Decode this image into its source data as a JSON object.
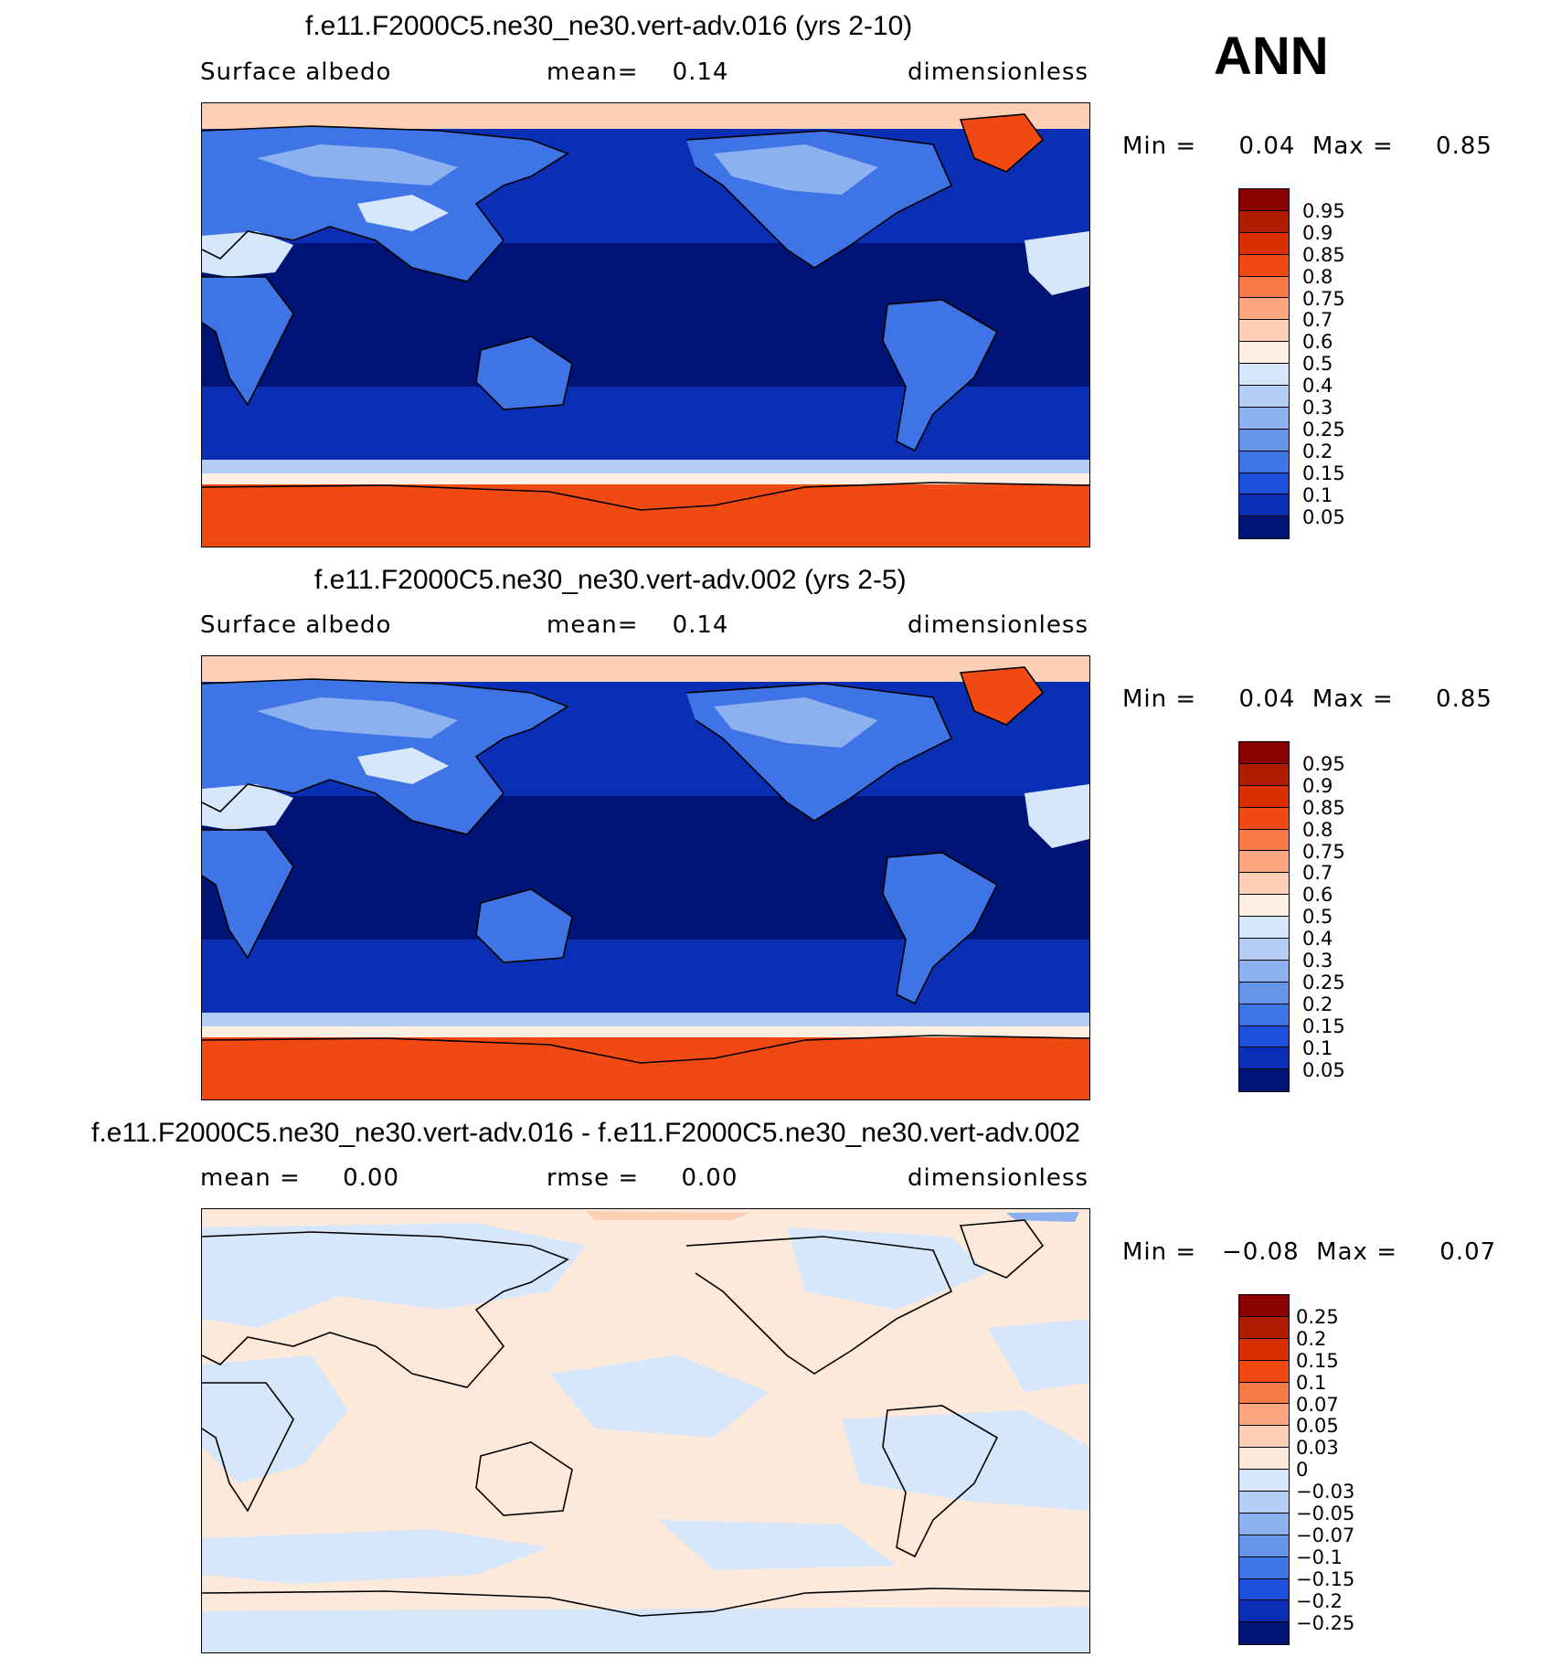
{
  "season": "ANN",
  "panels": [
    {
      "title": "f.e11.F2000C5.ne30_ne30.vert-adv.016 (yrs 2-10)",
      "left_label": "Surface albedo",
      "mid_label": "mean=    0.14",
      "right_label": "dimensionless",
      "stats": "Min =     0.04  Max =     0.85",
      "type": "abs",
      "colorbar_ticks": [
        "0.95",
        "0.9",
        "0.85",
        "0.8",
        "0.75",
        "0.7",
        "0.6",
        "0.5",
        "0.4",
        "0.3",
        "0.25",
        "0.2",
        "0.15",
        "0.1",
        "0.05"
      ]
    },
    {
      "title": "f.e11.F2000C5.ne30_ne30.vert-adv.002 (yrs 2-5)",
      "left_label": "Surface albedo",
      "mid_label": "mean=    0.14",
      "right_label": "dimensionless",
      "stats": "Min =     0.04  Max =     0.85",
      "type": "abs",
      "colorbar_ticks": [
        "0.95",
        "0.9",
        "0.85",
        "0.8",
        "0.75",
        "0.7",
        "0.6",
        "0.5",
        "0.4",
        "0.3",
        "0.25",
        "0.2",
        "0.15",
        "0.1",
        "0.05"
      ]
    },
    {
      "title": "f.e11.F2000C5.ne30_ne30.vert-adv.016 - f.e11.F2000C5.ne30_ne30.vert-adv.002",
      "left_label": "mean =     0.00",
      "mid_label": "rmse =     0.00",
      "right_label": "dimensionless",
      "stats": "Min =   −0.08  Max =     0.07",
      "type": "diff",
      "colorbar_ticks": [
        "0.25",
        "0.2",
        "0.15",
        "0.1",
        "0.07",
        "0.05",
        "0.03",
        "0",
        "−0.03",
        "−0.05",
        "−0.07",
        "−0.1",
        "−0.15",
        "−0.2",
        "−0.25"
      ]
    }
  ],
  "colors": {
    "abs_scale": [
      "#8b0000",
      "#b01c00",
      "#d83000",
      "#f04a12",
      "#f87a46",
      "#fca682",
      "#fdcfb4",
      "#fdeee2",
      "#d6e6fb",
      "#b3cdf5",
      "#8db1ef",
      "#6495ea",
      "#3f74e6",
      "#1a50dc",
      "#0a2fb5",
      "#001478"
    ],
    "diff_scale": [
      "#8b0000",
      "#b01c00",
      "#d83000",
      "#f04a12",
      "#f87a46",
      "#fca682",
      "#fdcfb4",
      "#fde9da",
      "#d6e6fb",
      "#b3cdf5",
      "#8db1ef",
      "#6495ea",
      "#3f74e6",
      "#1a50dc",
      "#0a2fb5",
      "#001478"
    ]
  }
}
